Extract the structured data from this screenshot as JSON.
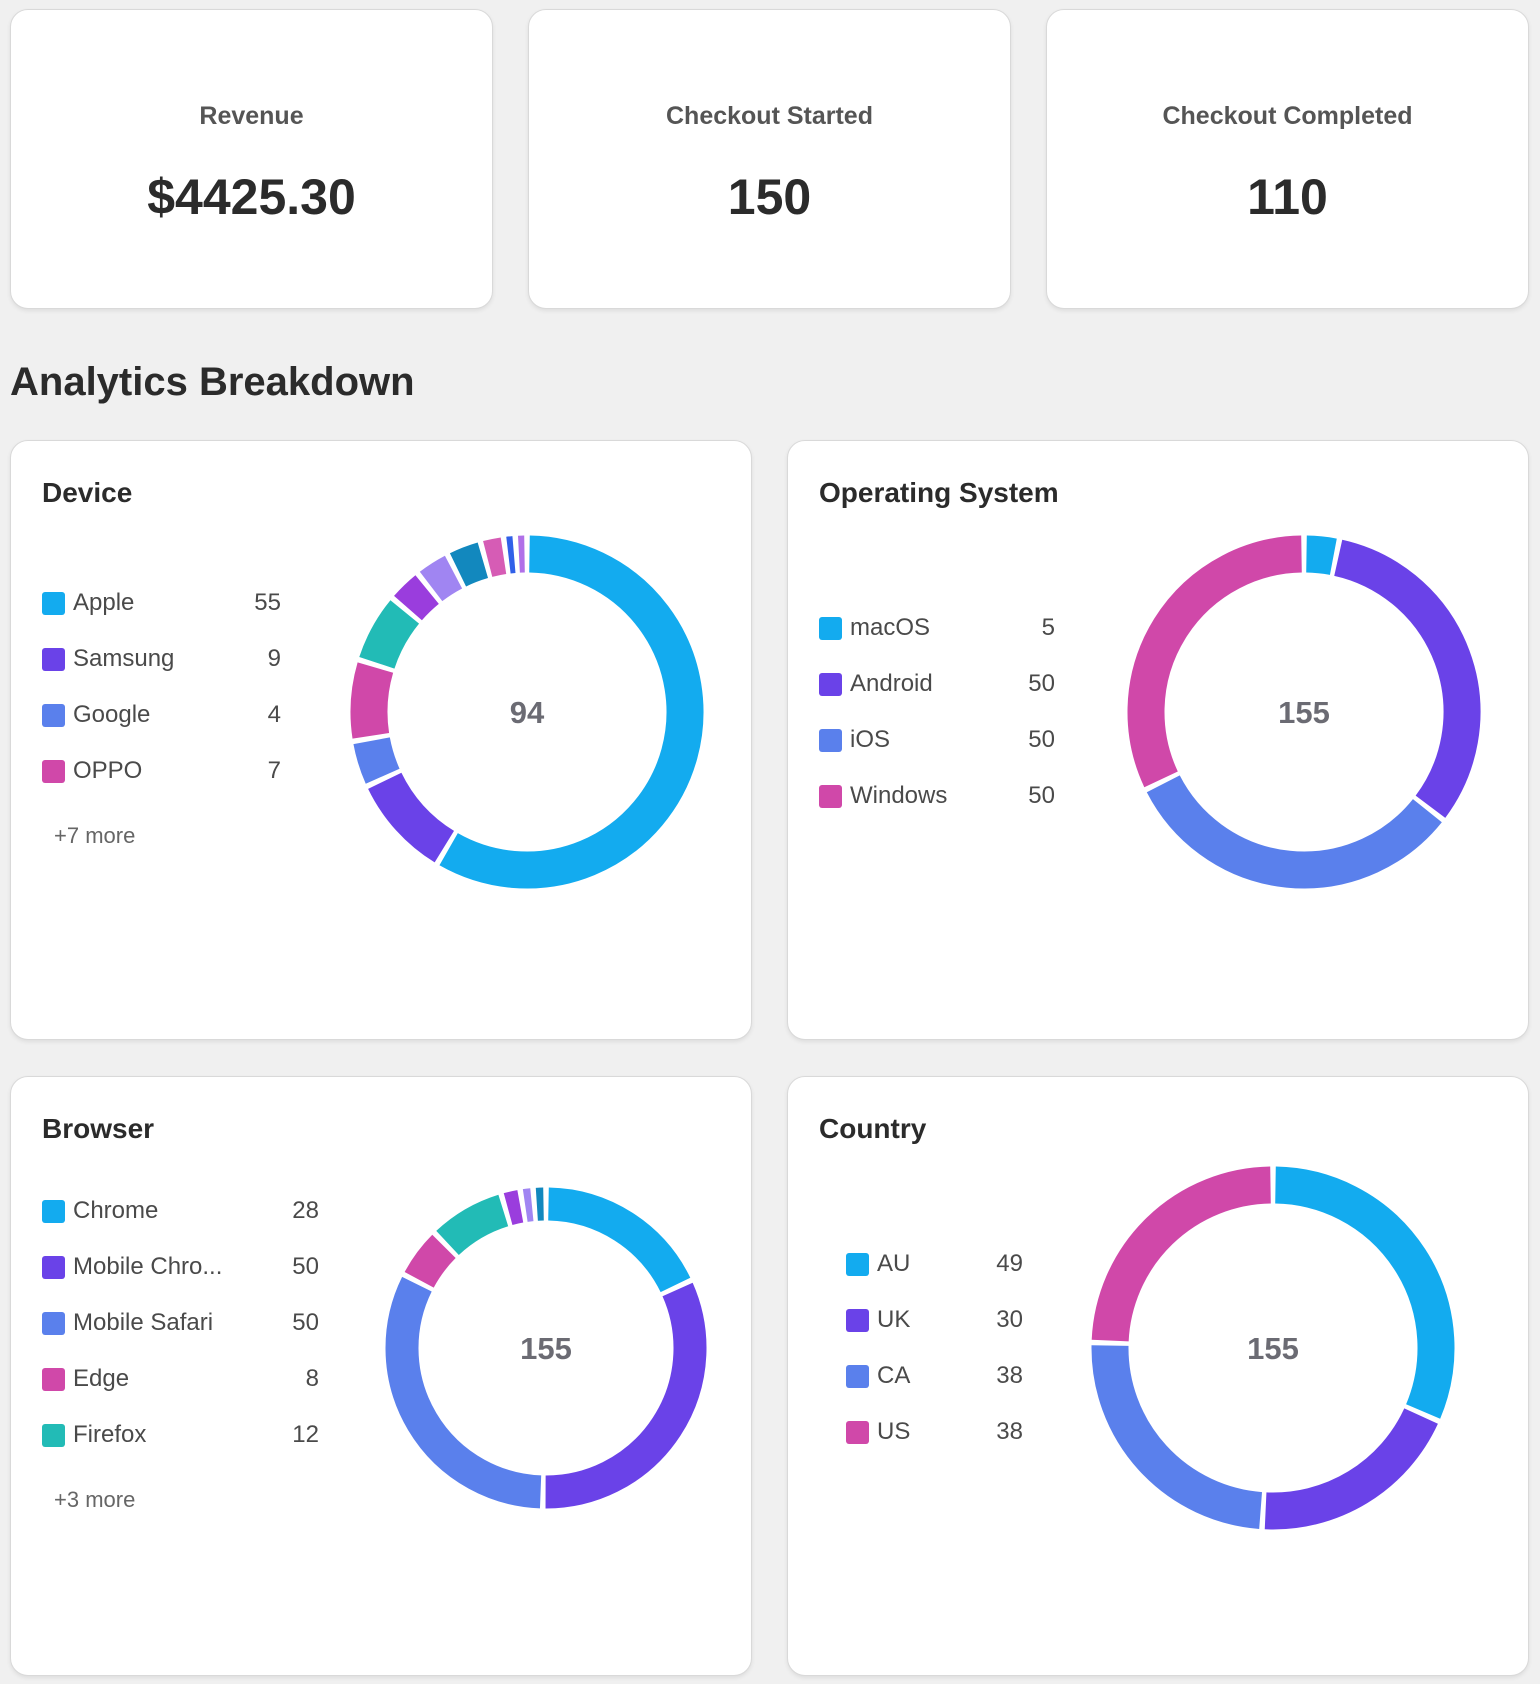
{
  "kpis": [
    {
      "label": "Revenue",
      "value": "$4425.30"
    },
    {
      "label": "Checkout Started",
      "value": "150"
    },
    {
      "label": "Checkout Completed",
      "value": "110"
    }
  ],
  "section_title": "Analytics Breakdown",
  "chart_data": [
    {
      "type": "pie",
      "variant": "donut",
      "title": "Device",
      "total": "94",
      "legend": [
        {
          "name": "Apple",
          "value": 55,
          "color": "#13abef"
        },
        {
          "name": "Samsung",
          "value": 9,
          "color": "#6a42e8"
        },
        {
          "name": "Google",
          "value": 4,
          "color": "#5a80ec"
        },
        {
          "name": "OPPO",
          "value": 7,
          "color": "#d048a9"
        }
      ],
      "more_label": "+7 more",
      "hidden_values": [
        {
          "value": 6,
          "color": "#22bbb6"
        },
        {
          "value": 3,
          "color": "#9a3ddd"
        },
        {
          "value": 3,
          "color": "#a085f2"
        },
        {
          "value": 3,
          "color": "#1288be"
        },
        {
          "value": 2,
          "color": "#d65cb5"
        },
        {
          "value": 1,
          "color": "#3060e8"
        },
        {
          "value": 1,
          "color": "#b070e8"
        }
      ]
    },
    {
      "type": "pie",
      "variant": "donut",
      "title": "Operating System",
      "total": "155",
      "legend": [
        {
          "name": "macOS",
          "value": 5,
          "color": "#13abef"
        },
        {
          "name": "Android",
          "value": 50,
          "color": "#6a42e8"
        },
        {
          "name": "iOS",
          "value": 50,
          "color": "#5a80ec"
        },
        {
          "name": "Windows",
          "value": 50,
          "color": "#d048a9"
        }
      ],
      "more_label": "",
      "hidden_values": []
    },
    {
      "type": "pie",
      "variant": "donut",
      "title": "Browser",
      "total": "155",
      "legend": [
        {
          "name": "Chrome",
          "value": 28,
          "color": "#13abef"
        },
        {
          "name": "Mobile Chro...",
          "value": 50,
          "color": "#6a42e8"
        },
        {
          "name": "Mobile Safari",
          "value": 50,
          "color": "#5a80ec"
        },
        {
          "name": "Edge",
          "value": 8,
          "color": "#d048a9"
        },
        {
          "name": "Firefox",
          "value": 12,
          "color": "#22bbb6"
        }
      ],
      "more_label": "+3 more",
      "hidden_values": [
        {
          "value": 3,
          "color": "#9a3ddd"
        },
        {
          "value": 2,
          "color": "#a085f2"
        },
        {
          "value": 2,
          "color": "#1288be"
        }
      ]
    },
    {
      "type": "pie",
      "variant": "donut",
      "title": "Country",
      "total": "155",
      "legend": [
        {
          "name": "AU",
          "value": 49,
          "color": "#13abef"
        },
        {
          "name": "UK",
          "value": 30,
          "color": "#6a42e8"
        },
        {
          "name": "CA",
          "value": 38,
          "color": "#5a80ec"
        },
        {
          "name": "US",
          "value": 38,
          "color": "#d048a9"
        }
      ],
      "more_label": "",
      "hidden_values": []
    }
  ]
}
